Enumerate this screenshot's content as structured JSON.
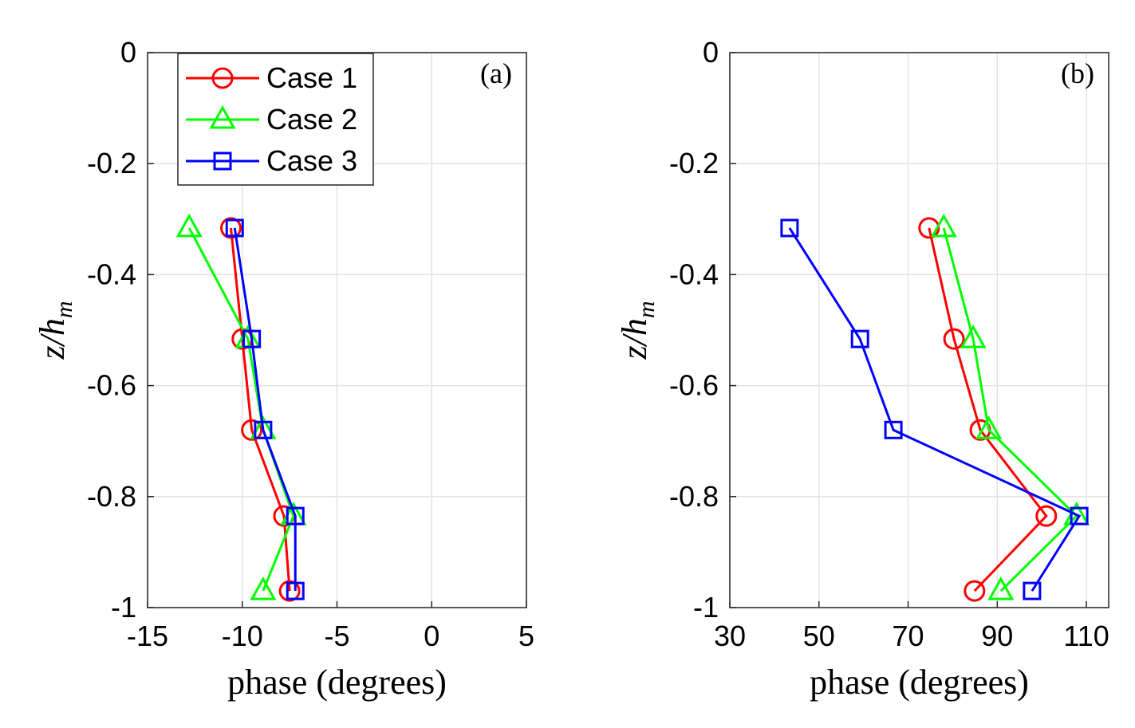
{
  "chart_data": [
    {
      "type": "line",
      "panel_label": "(a)",
      "xlabel": "phase (degrees)",
      "ylabel": "z/h",
      "ylabel_sub": "m",
      "xlim": [
        -15,
        5
      ],
      "ylim": [
        -1,
        0
      ],
      "xticks": [
        "-15",
        "-10",
        "-5",
        "0",
        "5"
      ],
      "xtick_values": [
        -15,
        -10,
        -5,
        0,
        5
      ],
      "yticks": [
        "0",
        "-0.2",
        "-0.4",
        "-0.6",
        "-0.8",
        "-1"
      ],
      "ytick_values": [
        0,
        -0.2,
        -0.4,
        -0.6,
        -0.8,
        -1
      ],
      "grid": true,
      "legend": "top-left",
      "series": [
        {
          "name": "Case 1",
          "color": "#ff0000",
          "marker": "circle",
          "x": [
            -10.6,
            -10.0,
            -9.5,
            -7.8,
            -7.5
          ],
          "y": [
            -0.316,
            -0.516,
            -0.68,
            -0.835,
            -0.97
          ]
        },
        {
          "name": "Case 2",
          "color": "#00ff00",
          "marker": "triangle",
          "x": [
            -12.8,
            -9.7,
            -8.9,
            -7.3,
            -8.9
          ],
          "y": [
            -0.316,
            -0.516,
            -0.68,
            -0.835,
            -0.97
          ]
        },
        {
          "name": "Case 3",
          "color": "#0000ff",
          "marker": "square",
          "x": [
            -10.4,
            -9.5,
            -8.9,
            -7.2,
            -7.2
          ],
          "y": [
            -0.316,
            -0.516,
            -0.68,
            -0.835,
            -0.97
          ]
        }
      ]
    },
    {
      "type": "line",
      "panel_label": "(b)",
      "xlabel": "phase (degrees)",
      "ylabel": "z/h",
      "ylabel_sub": "m",
      "xlim": [
        30,
        115
      ],
      "ylim": [
        -1,
        0
      ],
      "xticks": [
        "30",
        "50",
        "70",
        "90",
        "110"
      ],
      "xtick_values": [
        30,
        50,
        70,
        90,
        110
      ],
      "yticks": [
        "0",
        "-0.2",
        "-0.4",
        "-0.6",
        "-0.8",
        "-1"
      ],
      "ytick_values": [
        0,
        -0.2,
        -0.4,
        -0.6,
        -0.8,
        -1
      ],
      "grid": true,
      "series": [
        {
          "name": "Case 1",
          "color": "#ff0000",
          "marker": "circle",
          "x": [
            74.7,
            80.3,
            86.2,
            101.0,
            84.9
          ],
          "y": [
            -0.316,
            -0.516,
            -0.68,
            -0.835,
            -0.97
          ]
        },
        {
          "name": "Case 2",
          "color": "#00ff00",
          "marker": "triangle",
          "x": [
            78.0,
            84.6,
            88.1,
            107.8,
            90.8
          ],
          "y": [
            -0.316,
            -0.516,
            -0.68,
            -0.835,
            -0.97
          ]
        },
        {
          "name": "Case 3",
          "color": "#0000ff",
          "marker": "square",
          "x": [
            43.4,
            59.2,
            66.7,
            108.4,
            97.8
          ],
          "y": [
            -0.316,
            -0.516,
            -0.68,
            -0.835,
            -0.97
          ]
        }
      ]
    }
  ]
}
